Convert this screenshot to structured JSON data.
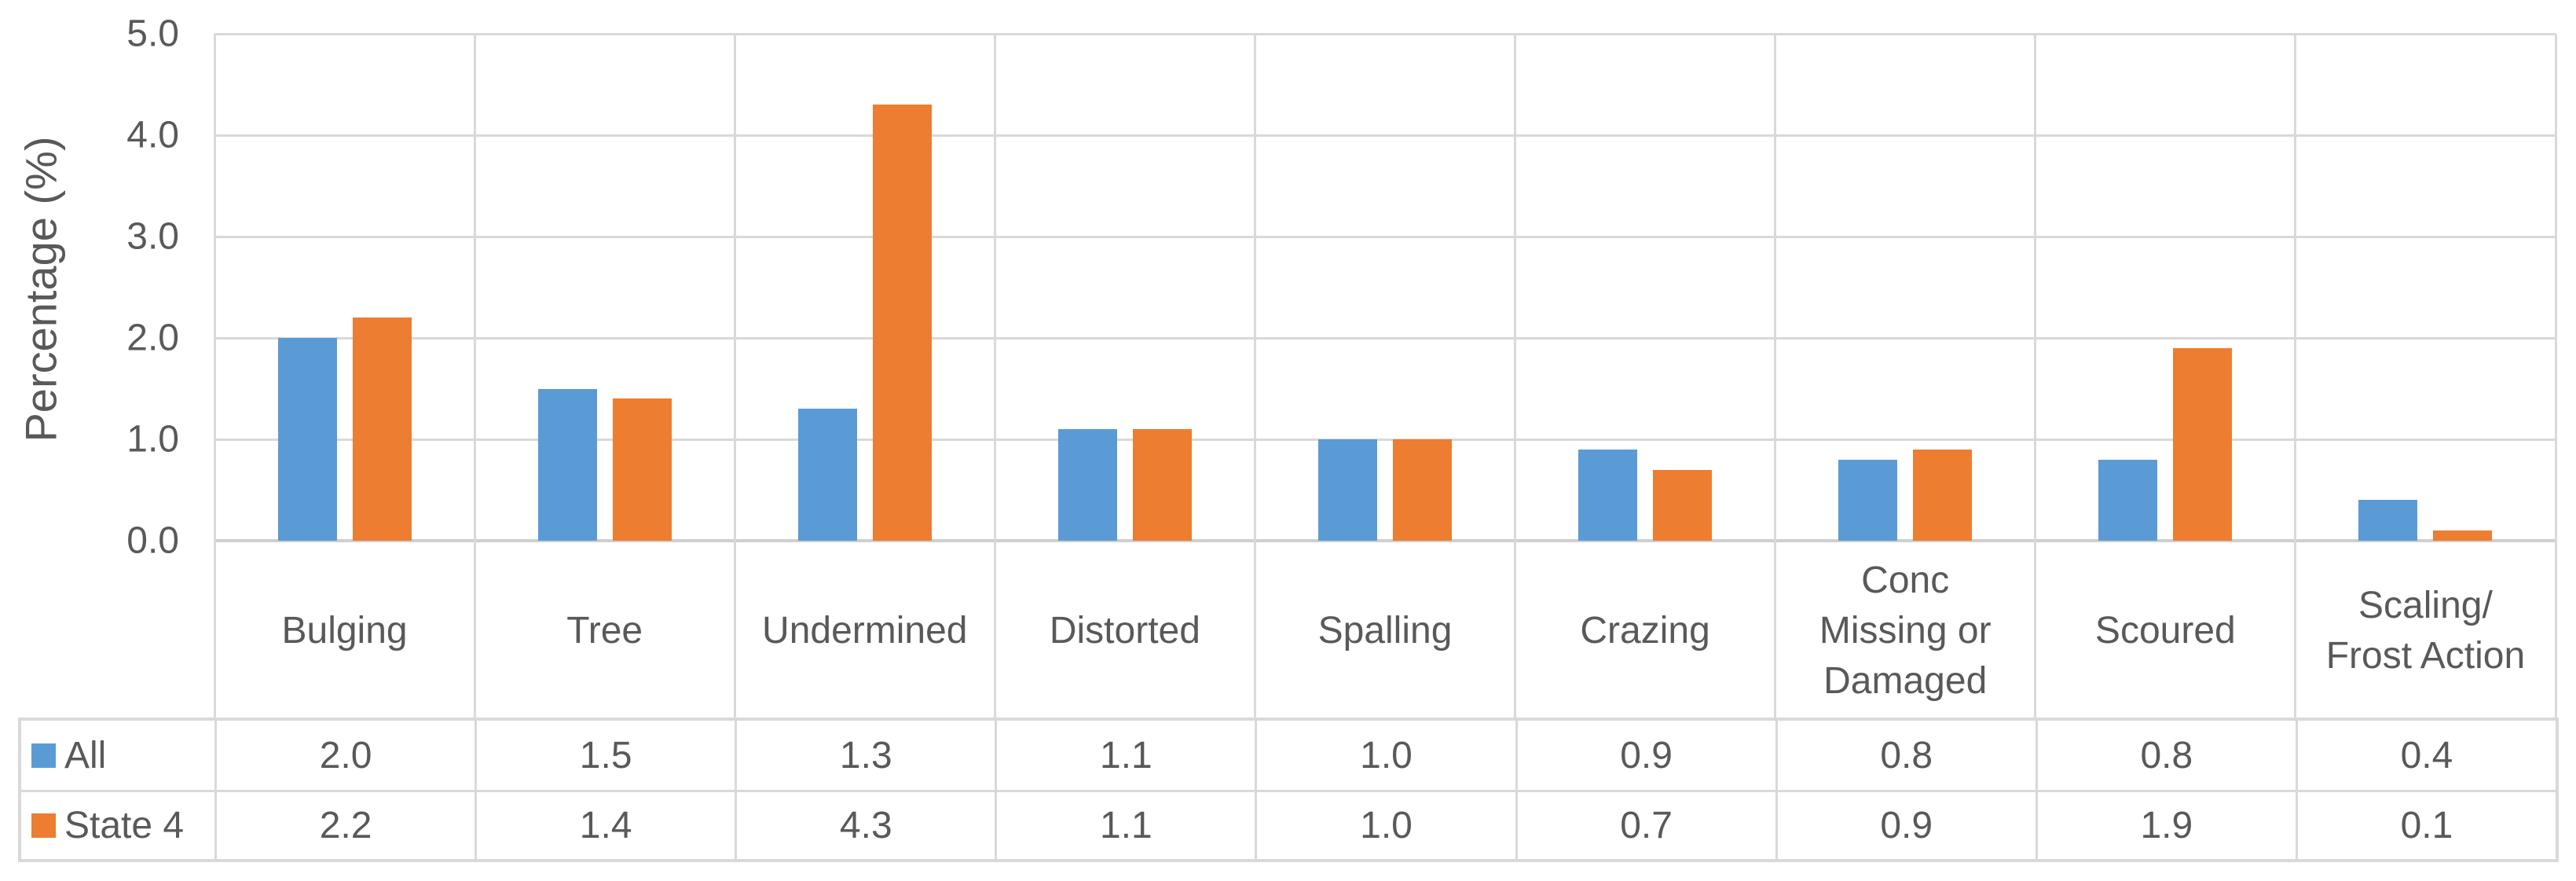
{
  "chart_data": {
    "type": "bar",
    "title": "",
    "xlabel": "",
    "ylabel": "Percentage (%)",
    "ylim": [
      0,
      5
    ],
    "ytick_labels": [
      "5.0",
      "4.0",
      "3.0",
      "2.0",
      "1.0",
      "0.0"
    ],
    "grid": true,
    "legend_position": "left-of-data-table",
    "categories": [
      "Bulging",
      "Tree",
      "Undermined",
      "Distorted",
      "Spalling",
      "Crazing",
      "Conc\nMissing or\nDamaged",
      "Scoured",
      "Scaling/\nFrost Action"
    ],
    "series": [
      {
        "name": "All",
        "color": "#5B9BD5",
        "values": [
          2.0,
          1.5,
          1.3,
          1.1,
          1.0,
          0.9,
          0.8,
          0.8,
          0.4
        ]
      },
      {
        "name": "State 4",
        "color": "#ED7D31",
        "values": [
          2.2,
          1.4,
          4.3,
          1.1,
          1.0,
          0.7,
          0.9,
          1.9,
          0.1
        ]
      }
    ],
    "value_decimals": 1,
    "colors": {
      "text": "#595959",
      "gridline": "#D9D9D9",
      "axis_line": "#CFCFCF",
      "background": "#FFFFFF"
    }
  }
}
